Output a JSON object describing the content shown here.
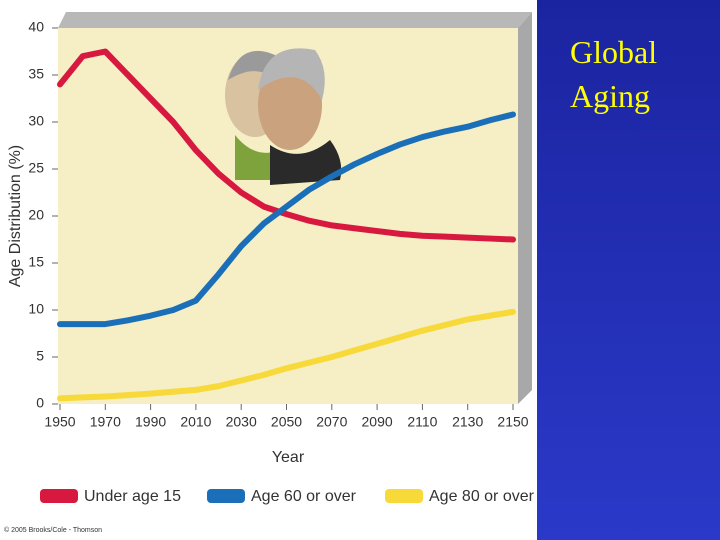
{
  "chart_data": {
    "type": "line",
    "title": "Global Aging",
    "y_label": "Age Distribution (%)",
    "x_label": "Year",
    "credit": "© 2005 Brooks/Cole - Thomson",
    "x": [
      1950,
      1960,
      1970,
      1980,
      1990,
      2000,
      2010,
      2020,
      2030,
      2040,
      2050,
      2060,
      2070,
      2080,
      2090,
      2100,
      2110,
      2120,
      2130,
      2140,
      2150
    ],
    "series": [
      {
        "name": "Under age 15",
        "color": "#d7193f",
        "values": [
          34,
          37,
          37.5,
          35,
          32.5,
          30,
          27,
          24.5,
          22.5,
          21,
          20.2,
          19.5,
          19,
          18.7,
          18.4,
          18.1,
          17.9,
          17.8,
          17.7,
          17.6,
          17.5
        ]
      },
      {
        "name": "Age 60 or over",
        "color": "#1a6fb8",
        "values": [
          8.5,
          8.5,
          8.5,
          8.9,
          9.4,
          10,
          11,
          13.8,
          16.8,
          19.2,
          21,
          22.8,
          24.2,
          25.5,
          26.6,
          27.6,
          28.4,
          29,
          29.5,
          30.2,
          30.8
        ]
      },
      {
        "name": "Age 80 or over",
        "color": "#f7d93a",
        "values": [
          0.6,
          0.7,
          0.8,
          0.95,
          1.1,
          1.3,
          1.5,
          1.9,
          2.5,
          3.1,
          3.8,
          4.4,
          5,
          5.7,
          6.4,
          7.1,
          7.8,
          8.4,
          9,
          9.4,
          9.8
        ]
      }
    ],
    "xlim": [
      1950,
      2150
    ],
    "xticks": [
      1950,
      1970,
      1990,
      2010,
      2030,
      2050,
      2070,
      2090,
      2110,
      2130,
      2150
    ],
    "ylim": [
      0,
      40
    ],
    "yticks": [
      0,
      5,
      10,
      15,
      20,
      25,
      30,
      35,
      40
    ],
    "grid": false,
    "plot_background": "#f6eec4"
  }
}
